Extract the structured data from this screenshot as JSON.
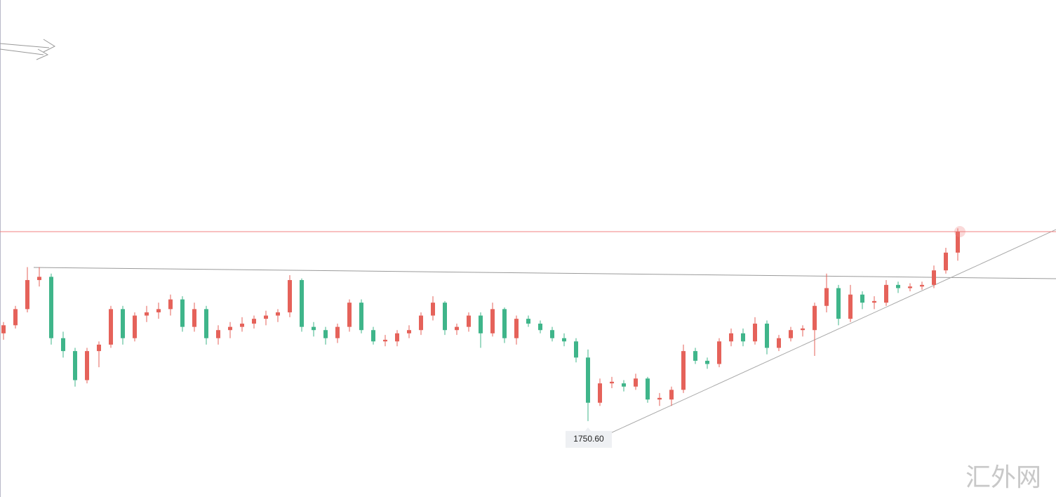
{
  "chart_data": {
    "type": "candlestick",
    "ylim": [
      1703.6,
      2011.5
    ],
    "up_color": "#e5625a",
    "down_color": "#3fb58a",
    "price_line": 1868,
    "price_line_color": "#f08080",
    "annotation": {
      "value": 1750.6,
      "label": "1750.60"
    },
    "watermark": "汇外网",
    "ohlc": [
      [
        1805,
        1812,
        1801,
        1810
      ],
      [
        1810,
        1822,
        1808,
        1820
      ],
      [
        1820,
        1846,
        1818,
        1838
      ],
      [
        1838,
        1846,
        1834,
        1840
      ],
      [
        1840,
        1842,
        1798,
        1802
      ],
      [
        1802,
        1806,
        1790,
        1794
      ],
      [
        1794,
        1796,
        1772,
        1776
      ],
      [
        1776,
        1796,
        1774,
        1794
      ],
      [
        1794,
        1800,
        1784,
        1798
      ],
      [
        1798,
        1822,
        1796,
        1820
      ],
      [
        1820,
        1822,
        1798,
        1802
      ],
      [
        1802,
        1818,
        1800,
        1816
      ],
      [
        1816,
        1822,
        1812,
        1818
      ],
      [
        1818,
        1824,
        1814,
        1820
      ],
      [
        1820,
        1829,
        1816,
        1826
      ],
      [
        1826,
        1828,
        1806,
        1809
      ],
      [
        1809,
        1824,
        1806,
        1820
      ],
      [
        1820,
        1822,
        1798,
        1802
      ],
      [
        1802,
        1810,
        1798,
        1807
      ],
      [
        1807,
        1812,
        1802,
        1809
      ],
      [
        1809,
        1815,
        1806,
        1811
      ],
      [
        1811,
        1816,
        1808,
        1814
      ],
      [
        1814,
        1819,
        1810,
        1816
      ],
      [
        1816,
        1820,
        1812,
        1818
      ],
      [
        1818,
        1841,
        1815,
        1838
      ],
      [
        1838,
        1839,
        1806,
        1809
      ],
      [
        1809,
        1812,
        1803,
        1807
      ],
      [
        1807,
        1809,
        1798,
        1802
      ],
      [
        1802,
        1811,
        1799,
        1809
      ],
      [
        1809,
        1826,
        1806,
        1824
      ],
      [
        1824,
        1826,
        1805,
        1807
      ],
      [
        1807,
        1809,
        1798,
        1800
      ],
      [
        1800,
        1804,
        1797,
        1801
      ],
      [
        1800,
        1807,
        1797,
        1805
      ],
      [
        1805,
        1810,
        1802,
        1807
      ],
      [
        1807,
        1818,
        1804,
        1816
      ],
      [
        1816,
        1828,
        1813,
        1824
      ],
      [
        1824,
        1825,
        1804,
        1807
      ],
      [
        1807,
        1811,
        1804,
        1809
      ],
      [
        1809,
        1818,
        1806,
        1816
      ],
      [
        1816,
        1818,
        1796,
        1805
      ],
      [
        1805,
        1824,
        1803,
        1820
      ],
      [
        1820,
        1821,
        1799,
        1802
      ],
      [
        1802,
        1816,
        1798,
        1814
      ],
      [
        1814,
        1816,
        1809,
        1811
      ],
      [
        1811,
        1813,
        1805,
        1807
      ],
      [
        1807,
        1809,
        1800,
        1802
      ],
      [
        1802,
        1805,
        1797,
        1800
      ],
      [
        1800,
        1802,
        1787,
        1790
      ],
      [
        1790,
        1795,
        1750.6,
        1762
      ],
      [
        1762,
        1777,
        1760,
        1774
      ],
      [
        1774,
        1778,
        1771,
        1775
      ],
      [
        1774,
        1776,
        1769,
        1772
      ],
      [
        1772,
        1780,
        1770,
        1777
      ],
      [
        1777,
        1778,
        1762,
        1764
      ],
      [
        1764,
        1768,
        1760,
        1765
      ],
      [
        1764,
        1772,
        1760,
        1770
      ],
      [
        1770,
        1798,
        1768,
        1794
      ],
      [
        1794,
        1796,
        1786,
        1788
      ],
      [
        1788,
        1790,
        1783,
        1786
      ],
      [
        1786,
        1802,
        1784,
        1800
      ],
      [
        1800,
        1808,
        1797,
        1805
      ],
      [
        1805,
        1808,
        1797,
        1800
      ],
      [
        1800,
        1815,
        1798,
        1811
      ],
      [
        1811,
        1813,
        1792,
        1796
      ],
      [
        1796,
        1804,
        1794,
        1802
      ],
      [
        1802,
        1809,
        1800,
        1807
      ],
      [
        1807,
        1810,
        1803,
        1808
      ],
      [
        1807,
        1824,
        1791,
        1822
      ],
      [
        1822,
        1842,
        1818,
        1833
      ],
      [
        1833,
        1835,
        1810,
        1814
      ],
      [
        1814,
        1835,
        1812,
        1829
      ],
      [
        1829,
        1831,
        1820,
        1824
      ],
      [
        1824,
        1828,
        1820,
        1825
      ],
      [
        1824,
        1838,
        1822,
        1835
      ],
      [
        1835,
        1837,
        1830,
        1833
      ],
      [
        1833,
        1836,
        1831,
        1834
      ],
      [
        1834,
        1837,
        1832,
        1835
      ],
      [
        1835,
        1847,
        1833,
        1844
      ],
      [
        1844,
        1858,
        1842,
        1855
      ],
      [
        1855,
        1870,
        1850,
        1868
      ]
    ]
  }
}
